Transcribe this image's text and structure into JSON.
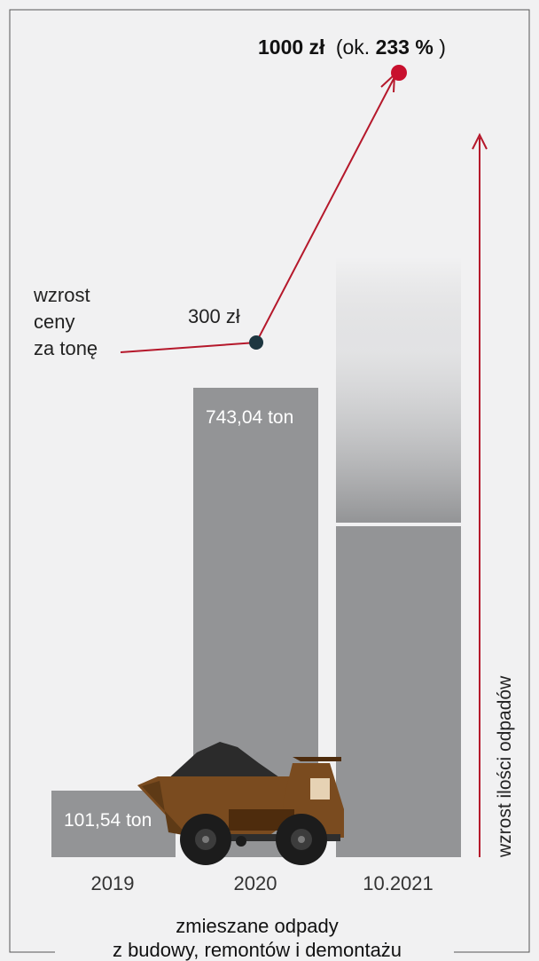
{
  "chart_data": {
    "type": "bar",
    "categories": [
      "2019",
      "2020",
      "10.2021"
    ],
    "values": [
      101.54,
      743.04,
      null
    ],
    "value_labels": [
      "101,54 ton",
      "743,04 ton",
      ""
    ],
    "unit": "ton",
    "price_line": {
      "label_lines": [
        "wzrost",
        "ceny",
        "za tonę"
      ],
      "points": [
        {
          "category": "2020",
          "value": 300,
          "label": "300 zł"
        },
        {
          "category": "10.2021",
          "value": 1000,
          "label_value": "1000 zł",
          "label_paren_open": "(ok. ",
          "label_pct": "233 %",
          "label_paren_close": ")"
        }
      ]
    },
    "arrow_label": "wzrost ilości odpadów",
    "caption_lines": [
      "zmieszane odpady",
      "z budowy, remontów i demontażu"
    ],
    "colors": {
      "bar": "#939496",
      "price_line": "#b5182b",
      "point_start": "#1d3640",
      "point_end": "#c8102e",
      "truck_body": "#7a4b1f",
      "truck_dark": "#4e2c0d",
      "load": "#2b2b2b"
    }
  }
}
